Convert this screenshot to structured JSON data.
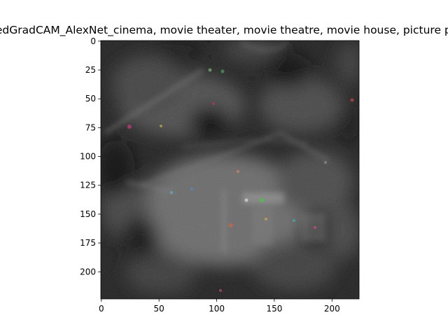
{
  "figure": {
    "title": "GuidedGradCAM_AlexNet_cinema, movie theater, movie theatre, movie house, picture palace"
  },
  "image": {
    "description_icon": "saliency-map-image",
    "colormap": "grayscale-rgb",
    "background_color": "#1e1e1e",
    "width_units": 224,
    "height_units": 224
  },
  "axes": {
    "x_ticks": [
      "0",
      "50",
      "100",
      "150",
      "200"
    ],
    "y_ticks": [
      "0",
      "25",
      "50",
      "75",
      "100",
      "125",
      "150",
      "175",
      "200"
    ],
    "x_tick_values": [
      0,
      50,
      100,
      150,
      200
    ],
    "y_tick_values": [
      0,
      25,
      50,
      75,
      100,
      125,
      150,
      175,
      200
    ],
    "xlim": [
      -0.5,
      223.5
    ],
    "ylim": [
      223.5,
      -0.5
    ]
  }
}
